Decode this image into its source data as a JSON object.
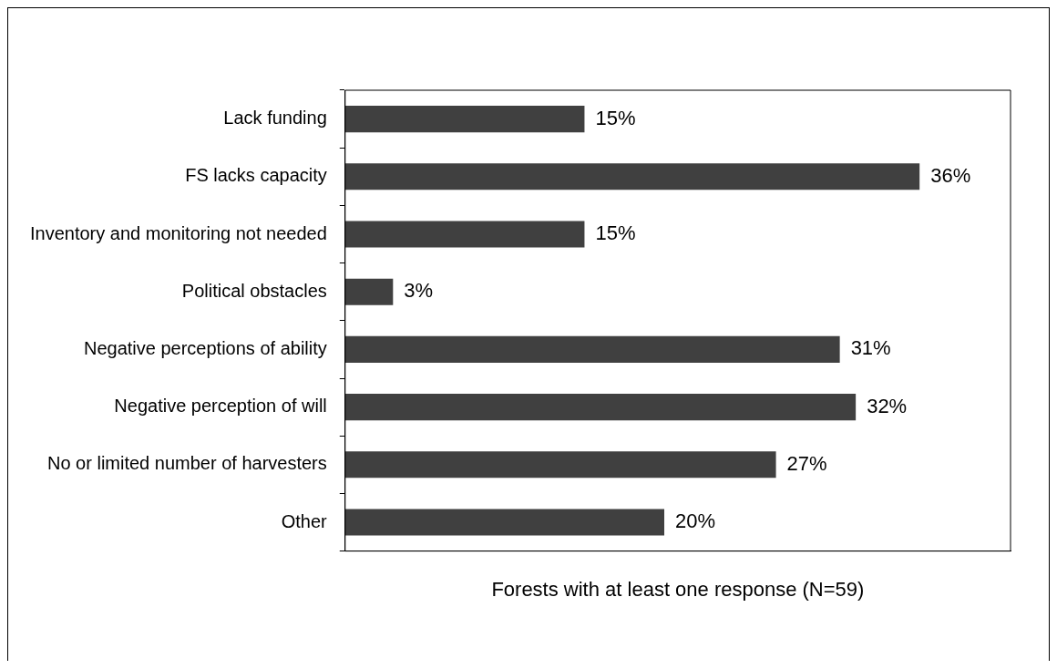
{
  "chart_data": {
    "type": "bar",
    "orientation": "horizontal",
    "xlabel": "Forests with at least one response (N=59)",
    "categories": [
      "Lack funding",
      "FS lacks capacity",
      "Inventory and monitoring not needed",
      "Political obstacles",
      "Negative perceptions of ability",
      "Negative perception of will",
      "No or limited number of harvesters",
      "Other"
    ],
    "values": [
      15,
      36,
      15,
      3,
      31,
      32,
      27,
      20
    ],
    "value_labels": [
      "15%",
      "36%",
      "15%",
      "3%",
      "31%",
      "32%",
      "27%",
      "20%"
    ],
    "color": "#404040",
    "tick_labels": "y",
    "legend": false
  }
}
